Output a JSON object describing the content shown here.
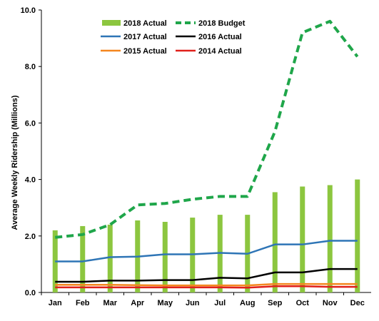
{
  "chart_data": {
    "type": "bar",
    "title": "",
    "xlabel": "",
    "ylabel": "Average Weekly Ridership (Millions)",
    "ylim": [
      0,
      10
    ],
    "y_ticks": [
      "0.0",
      "2.0",
      "4.0",
      "6.0",
      "8.0",
      "10.0"
    ],
    "y_tick_values": [
      0,
      2,
      4,
      6,
      8,
      10
    ],
    "grid": false,
    "legend_position": "top",
    "categories": [
      "Jan",
      "Feb",
      "Mar",
      "Apr",
      "May",
      "Jun",
      "Jul",
      "Aug",
      "Sep",
      "Oct",
      "Nov",
      "Dec"
    ],
    "series": [
      {
        "name": "2018 Actual",
        "type": "bar",
        "color": "#8cc63f",
        "values": [
          2.2,
          2.35,
          2.4,
          2.55,
          2.5,
          2.65,
          2.75,
          2.75,
          3.55,
          3.75,
          3.8,
          4.0
        ]
      },
      {
        "name": "2018 Budget",
        "type": "line",
        "style": "dashed",
        "color": "#1fa64a",
        "values": [
          1.95,
          2.05,
          2.4,
          3.1,
          3.15,
          3.3,
          3.4,
          3.4,
          5.7,
          9.2,
          9.6,
          8.35
        ]
      },
      {
        "name": "2017 Actual",
        "type": "line",
        "color": "#2e75b6",
        "values": [
          1.1,
          1.1,
          1.25,
          1.27,
          1.35,
          1.35,
          1.4,
          1.37,
          1.7,
          1.7,
          1.83,
          1.83
        ]
      },
      {
        "name": "2016 Actual",
        "type": "line",
        "color": "#000000",
        "values": [
          0.38,
          0.38,
          0.42,
          0.42,
          0.44,
          0.44,
          0.52,
          0.5,
          0.71,
          0.71,
          0.83,
          0.83
        ]
      },
      {
        "name": "2015 Actual",
        "type": "line",
        "color": "#f4861e",
        "values": [
          0.27,
          0.27,
          0.27,
          0.26,
          0.25,
          0.25,
          0.25,
          0.25,
          0.3,
          0.3,
          0.3,
          0.3
        ]
      },
      {
        "name": "2014 Actual",
        "type": "line",
        "color": "#e0201a",
        "values": [
          0.18,
          0.18,
          0.18,
          0.18,
          0.18,
          0.18,
          0.18,
          0.17,
          0.22,
          0.22,
          0.2,
          0.2
        ]
      }
    ],
    "legend_order": [
      "2018 Actual",
      "2018 Budget",
      "2017 Actual",
      "2016 Actual",
      "2015 Actual",
      "2014 Actual"
    ]
  }
}
